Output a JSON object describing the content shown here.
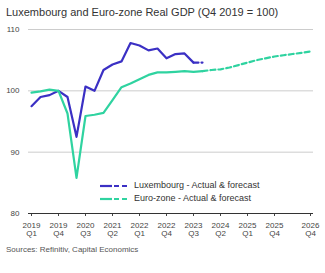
{
  "chart_data": {
    "type": "line",
    "title": "Luxembourg and Euro-zone Real GDP (Q4 2019 = 100)",
    "source": "Sources: Refinitiv, Capital Economics",
    "categories": [
      "2019 Q1",
      null,
      null,
      "2019 Q4",
      null,
      null,
      "2020 Q3",
      null,
      null,
      "2021 Q2",
      null,
      null,
      "2022 Q1",
      null,
      null,
      "2022 Q4",
      null,
      null,
      "2023 Q3",
      null,
      null,
      "2024 Q2",
      null,
      null,
      "2025 Q1",
      null,
      null,
      "2025 Q4",
      null,
      null,
      null,
      "2026 Q4"
    ],
    "series": [
      {
        "name": "Luxembourg - Actual & forecast",
        "color": "#3b30c4",
        "values": [
          97.5,
          99,
          99.3,
          100,
          99,
          92.5,
          100.7,
          100,
          103.4,
          104.3,
          104.8,
          107.8,
          107.4,
          106.6,
          106.9,
          105.3,
          106,
          106.1,
          104.6,
          null,
          null,
          null,
          null,
          null,
          null,
          null,
          null,
          null,
          null,
          null,
          null,
          null
        ],
        "forecast": [
          null,
          null,
          null,
          null,
          null,
          null,
          null,
          null,
          null,
          null,
          null,
          null,
          null,
          null,
          null,
          null,
          null,
          null,
          104.6,
          104.6,
          null,
          null,
          null,
          null,
          null,
          null,
          null,
          null,
          null,
          null,
          null,
          null
        ]
      },
      {
        "name": "Euro-zone - Actual & forecast",
        "color": "#2fd3a0",
        "values": [
          99.7,
          99.9,
          100.2,
          100,
          96.3,
          85.8,
          95.9,
          96.1,
          96.4,
          98.5,
          100.6,
          101.2,
          101.9,
          102.6,
          103,
          103,
          103.1,
          103.2,
          103.1,
          103.2,
          null,
          null,
          null,
          null,
          null,
          null,
          null,
          null,
          null,
          null,
          null,
          null
        ],
        "forecast": [
          null,
          null,
          null,
          null,
          null,
          null,
          null,
          null,
          null,
          null,
          null,
          null,
          null,
          null,
          null,
          null,
          null,
          null,
          null,
          103.2,
          103.4,
          103.5,
          103.8,
          104.2,
          104.6,
          105,
          105.3,
          105.6,
          105.8,
          106,
          106.2,
          106.4
        ]
      }
    ],
    "ylim": [
      80,
      110
    ],
    "yticks": [
      80,
      90,
      100,
      110
    ],
    "grid": true,
    "legend": "bottom"
  }
}
